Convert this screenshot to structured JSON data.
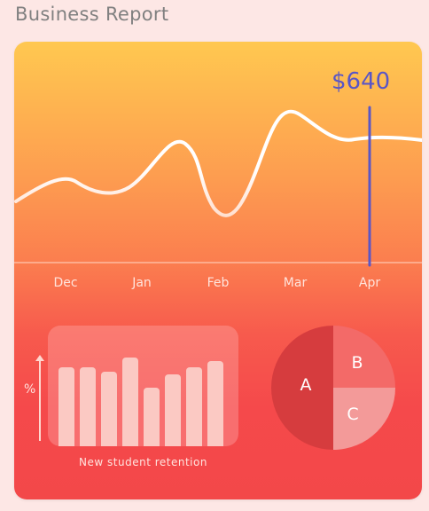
{
  "page": {
    "title": "Business Report"
  },
  "line_chart": {
    "highlight_value": "$640",
    "months": [
      "Dec",
      "Jan",
      "Feb",
      "Mar",
      "Apr"
    ],
    "line_color": "#ffffff",
    "highlight_color": "#5a56c6"
  },
  "bar_chart": {
    "caption": "New student retention",
    "y_axis_label": "%",
    "values": [
      91,
      91,
      86,
      102,
      67,
      83,
      91,
      98
    ]
  },
  "pie_chart": {
    "slices": [
      {
        "label": "A",
        "percent": 50,
        "color": "#d63c3e"
      },
      {
        "label": "B",
        "percent": 25,
        "color": "#f36a68"
      },
      {
        "label": "C",
        "percent": 25,
        "color": "#f39a99"
      }
    ]
  },
  "chart_data": [
    {
      "type": "line",
      "x": [
        "Dec",
        "Jan",
        "Feb",
        "Mar",
        "Apr"
      ],
      "highlight": {
        "x": "Apr",
        "value": "$640"
      }
    },
    {
      "type": "bar",
      "categories": [
        "",
        "",
        "",
        "",
        "",
        "",
        "",
        ""
      ],
      "values": [
        91,
        91,
        86,
        102,
        67,
        83,
        91,
        98
      ],
      "ylabel": "%",
      "xlabel": "New student retention"
    },
    {
      "type": "pie",
      "labels": [
        "A",
        "B",
        "C"
      ],
      "values": [
        50,
        25,
        25
      ]
    }
  ]
}
